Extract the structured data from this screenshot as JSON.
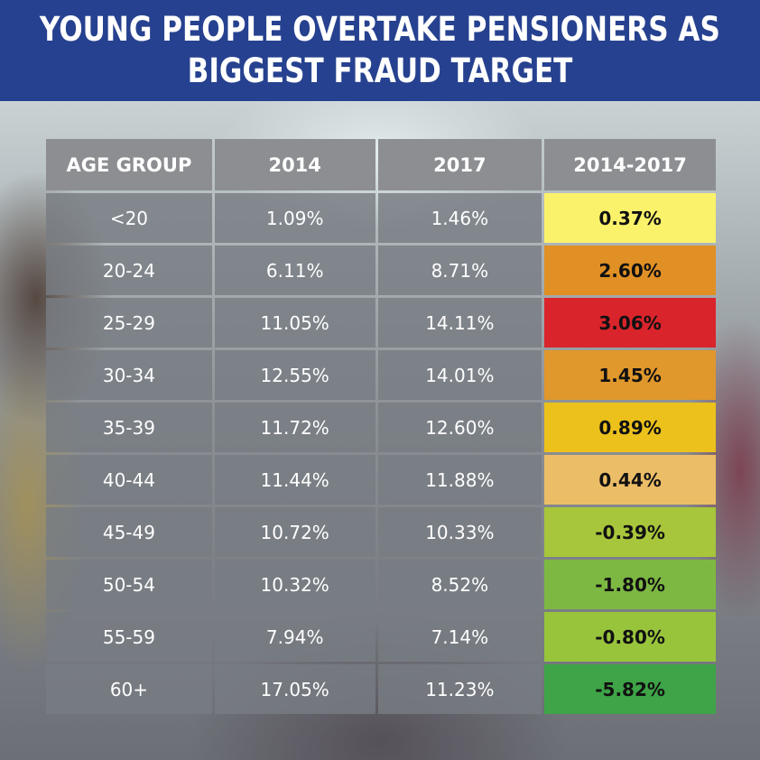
{
  "header": {
    "title_line1": "YOUNG PEOPLE OVERTAKE PENSIONERS AS",
    "title_line2": "BIGGEST FRAUD TARGET"
  },
  "chart_data": {
    "type": "table",
    "title": "YOUNG PEOPLE OVERTAKE PENSIONERS AS BIGGEST FRAUD TARGET",
    "columns": [
      "AGE GROUP",
      "2014",
      "2017",
      "2014-2017"
    ],
    "rows": [
      {
        "age": "<20",
        "y2014": "1.09%",
        "y2017": "1.46%",
        "change": "0.37%",
        "color": "#fbf26b"
      },
      {
        "age": "20-24",
        "y2014": "6.11%",
        "y2017": "8.71%",
        "change": "2.60%",
        "color": "#e09024"
      },
      {
        "age": "25-29",
        "y2014": "11.05%",
        "y2017": "14.11%",
        "change": "3.06%",
        "color": "#d9242b"
      },
      {
        "age": "30-34",
        "y2014": "12.55%",
        "y2017": "14.01%",
        "change": "1.45%",
        "color": "#e0972b"
      },
      {
        "age": "35-39",
        "y2014": "11.72%",
        "y2017": "12.60%",
        "change": "0.89%",
        "color": "#ecc11c"
      },
      {
        "age": "40-44",
        "y2014": "11.44%",
        "y2017": "11.88%",
        "change": "0.44%",
        "color": "#ecbd67"
      },
      {
        "age": "45-49",
        "y2014": "10.72%",
        "y2017": "10.33%",
        "change": "-0.39%",
        "color": "#a8c63b"
      },
      {
        "age": "50-54",
        "y2014": "10.32%",
        "y2017": "8.52%",
        "change": "-1.80%",
        "color": "#7db843"
      },
      {
        "age": "55-59",
        "y2014": "7.94%",
        "y2017": "7.14%",
        "change": "-0.80%",
        "color": "#98c43c"
      },
      {
        "age": "60+",
        "y2014": "17.05%",
        "y2017": "11.23%",
        "change": "-5.82%",
        "color": "#3ea447"
      }
    ]
  }
}
